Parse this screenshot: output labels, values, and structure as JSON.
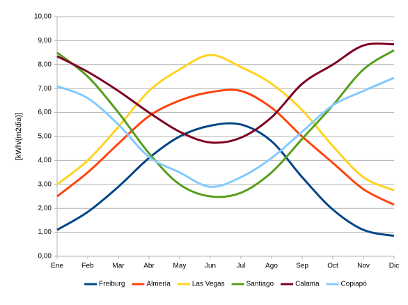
{
  "chart_data": {
    "type": "line",
    "y_label": "[kWh/(m2dia)]",
    "categories": [
      "Ene",
      "Feb",
      "Mar",
      "Abr",
      "May",
      "Jun",
      "Jul",
      "Ago",
      "Sep",
      "Oct",
      "Nov",
      "Dic"
    ],
    "series": [
      {
        "name": "Freiburg",
        "color": "#004586",
        "values": [
          1.1,
          1.85,
          2.9,
          4.1,
          5.0,
          5.45,
          5.5,
          4.8,
          3.3,
          1.95,
          1.1,
          0.85
        ]
      },
      {
        "name": "Almería",
        "color": "#ff420e",
        "values": [
          2.5,
          3.5,
          4.7,
          5.85,
          6.5,
          6.85,
          6.9,
          6.2,
          5.0,
          3.9,
          2.8,
          2.15
        ]
      },
      {
        "name": "Las Vegas",
        "color": "#ffd320",
        "values": [
          3.0,
          4.0,
          5.4,
          6.9,
          7.8,
          8.4,
          7.9,
          7.2,
          6.1,
          4.6,
          3.3,
          2.75
        ]
      },
      {
        "name": "Santiago",
        "color": "#579d1c",
        "values": [
          8.5,
          7.5,
          6.0,
          4.3,
          3.0,
          2.5,
          2.65,
          3.5,
          4.9,
          6.3,
          7.8,
          8.6
        ]
      },
      {
        "name": "Calama",
        "color": "#7e0021",
        "values": [
          8.35,
          7.7,
          6.9,
          6.0,
          5.2,
          4.75,
          4.95,
          5.8,
          7.2,
          8.0,
          8.8,
          8.85
        ]
      },
      {
        "name": "Copiapó",
        "color": "#83caff",
        "values": [
          7.1,
          6.6,
          5.5,
          4.15,
          3.5,
          2.9,
          3.3,
          4.1,
          5.2,
          6.3,
          6.9,
          7.45
        ]
      }
    ],
    "ylim": [
      0,
      10
    ],
    "yticks": [
      {
        "value": 0,
        "label": "0,00"
      },
      {
        "value": 1,
        "label": "1,00"
      },
      {
        "value": 2,
        "label": "2,00"
      },
      {
        "value": 3,
        "label": "3,00"
      },
      {
        "value": 4,
        "label": "4,00"
      },
      {
        "value": 5,
        "label": "5,00"
      },
      {
        "value": 6,
        "label": "6,00"
      },
      {
        "value": 7,
        "label": "7,00"
      },
      {
        "value": 8,
        "label": "8,00"
      },
      {
        "value": 9,
        "label": "9,00"
      },
      {
        "value": 10,
        "label": "10,00"
      }
    ],
    "grid": true,
    "legend": "bottom"
  }
}
